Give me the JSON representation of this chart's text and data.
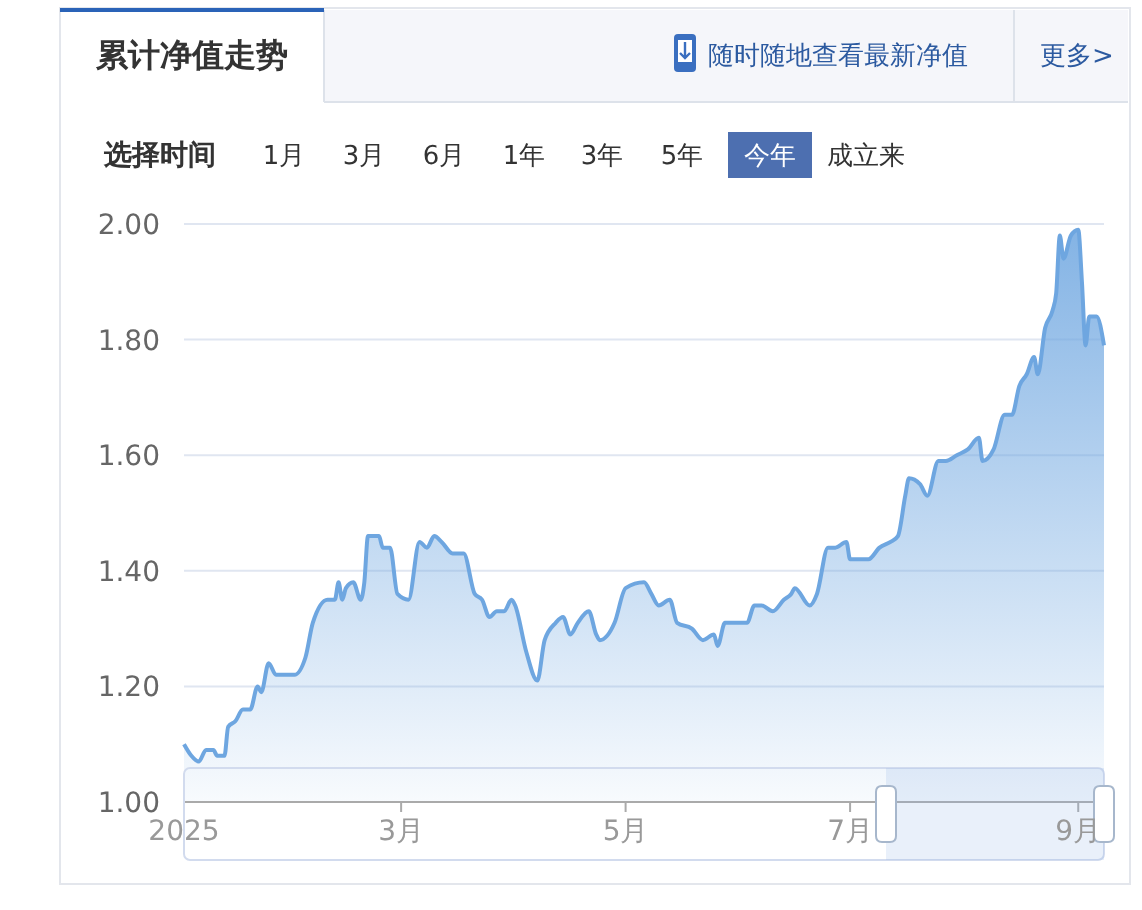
{
  "chart_data": {
    "type": "area",
    "title": "累计净值走势",
    "annotations": [
      "随时随地查看最新净值",
      "更多>",
      "选择时间",
      "1月",
      "3月",
      "6月",
      "1年",
      "3年",
      "5年",
      "今年",
      "成立来"
    ],
    "x": [
      "2025-01-01",
      "2025-01-03",
      "2025-01-05",
      "2025-01-07",
      "2025-01-09",
      "2025-01-10",
      "2025-01-12",
      "2025-01-13",
      "2025-01-15",
      "2025-01-17",
      "2025-01-19",
      "2025-01-21",
      "2025-01-22",
      "2025-01-24",
      "2025-01-26",
      "2025-01-31",
      "2025-02-03",
      "2025-02-05",
      "2025-02-09",
      "2025-02-11",
      "2025-02-12",
      "2025-02-13",
      "2025-02-14",
      "2025-02-16",
      "2025-02-18",
      "2025-02-19",
      "2025-02-20",
      "2025-02-23",
      "2025-02-24",
      "2025-02-26",
      "2025-02-28",
      "2025-03-03",
      "2025-03-06",
      "2025-03-08",
      "2025-03-10",
      "2025-03-12",
      "2025-03-15",
      "2025-03-18",
      "2025-03-21",
      "2025-03-23",
      "2025-03-25",
      "2025-03-27",
      "2025-03-29",
      "2025-03-31",
      "2025-04-01",
      "2025-04-04",
      "2025-04-07",
      "2025-04-09",
      "2025-04-12",
      "2025-04-14",
      "2025-04-16",
      "2025-04-18",
      "2025-04-21",
      "2025-04-23",
      "2025-04-24",
      "2025-04-28",
      "2025-05-01",
      "2025-05-06",
      "2025-05-08",
      "2025-05-10",
      "2025-05-13",
      "2025-05-15",
      "2025-05-19",
      "2025-05-22",
      "2025-05-25",
      "2025-05-26",
      "2025-05-28",
      "2025-06-03",
      "2025-06-05",
      "2025-06-07",
      "2025-06-10",
      "2025-06-13",
      "2025-06-15",
      "2025-06-16",
      "2025-06-20",
      "2025-06-22",
      "2025-06-25",
      "2025-06-27",
      "2025-06-30",
      "2025-07-01",
      "2025-07-06",
      "2025-07-09",
      "2025-07-12",
      "2025-07-14",
      "2025-07-16",
      "2025-07-17",
      "2025-07-20",
      "2025-07-22",
      "2025-07-25",
      "2025-07-27",
      "2025-07-30",
      "2025-08-02",
      "2025-08-05",
      "2025-08-06",
      "2025-08-09",
      "2025-08-12",
      "2025-08-14",
      "2025-08-16",
      "2025-08-18",
      "2025-08-20",
      "2025-08-21",
      "2025-08-23",
      "2025-08-25",
      "2025-08-26",
      "2025-08-27",
      "2025-08-28",
      "2025-08-30",
      "2025-09-01",
      "2025-09-02",
      "2025-09-03",
      "2025-09-04",
      "2025-09-06",
      "2025-09-08"
    ],
    "values": [
      1.1,
      1.08,
      1.07,
      1.09,
      1.09,
      1.08,
      1.08,
      1.13,
      1.14,
      1.16,
      1.16,
      1.2,
      1.19,
      1.24,
      1.22,
      1.22,
      1.25,
      1.31,
      1.35,
      1.35,
      1.38,
      1.35,
      1.37,
      1.38,
      1.35,
      1.38,
      1.46,
      1.46,
      1.44,
      1.44,
      1.36,
      1.35,
      1.45,
      1.44,
      1.46,
      1.45,
      1.43,
      1.43,
      1.36,
      1.35,
      1.32,
      1.33,
      1.33,
      1.35,
      1.34,
      1.26,
      1.21,
      1.28,
      1.31,
      1.32,
      1.29,
      1.31,
      1.33,
      1.29,
      1.28,
      1.31,
      1.37,
      1.38,
      1.36,
      1.34,
      1.35,
      1.31,
      1.3,
      1.28,
      1.29,
      1.27,
      1.31,
      1.31,
      1.34,
      1.34,
      1.33,
      1.35,
      1.36,
      1.37,
      1.34,
      1.36,
      1.44,
      1.44,
      1.45,
      1.42,
      1.42,
      1.44,
      1.45,
      1.46,
      1.53,
      1.56,
      1.55,
      1.53,
      1.59,
      1.59,
      1.6,
      1.61,
      1.63,
      1.59,
      1.61,
      1.67,
      1.67,
      1.72,
      1.74,
      1.77,
      1.74,
      1.82,
      1.85,
      1.88,
      1.98,
      1.94,
      1.98,
      1.99,
      1.9,
      1.79,
      1.84,
      1.84,
      1.79
    ],
    "color": "#6ea6e0",
    "xlim": [
      "2025-01-01",
      "2025-09-08"
    ],
    "xticks": [
      {
        "value": "2025-01-01",
        "label": "2025"
      },
      {
        "value": "2025-03-01",
        "label": "3月"
      },
      {
        "value": "2025-05-01",
        "label": "5月"
      },
      {
        "value": "2025-07-01",
        "label": "7月"
      },
      {
        "value": "2025-09-01",
        "label": "9月"
      }
    ],
    "ylim": [
      1.0,
      2.0
    ],
    "yticks": [
      {
        "value": 1.0,
        "label": "1.00"
      },
      {
        "value": 1.2,
        "label": "1.20"
      },
      {
        "value": 1.4,
        "label": "1.40"
      },
      {
        "value": 1.6,
        "label": "1.60"
      },
      {
        "value": 1.8,
        "label": "1.80"
      },
      {
        "value": 2.0,
        "label": "2.00"
      }
    ],
    "grid": "y"
  }
}
